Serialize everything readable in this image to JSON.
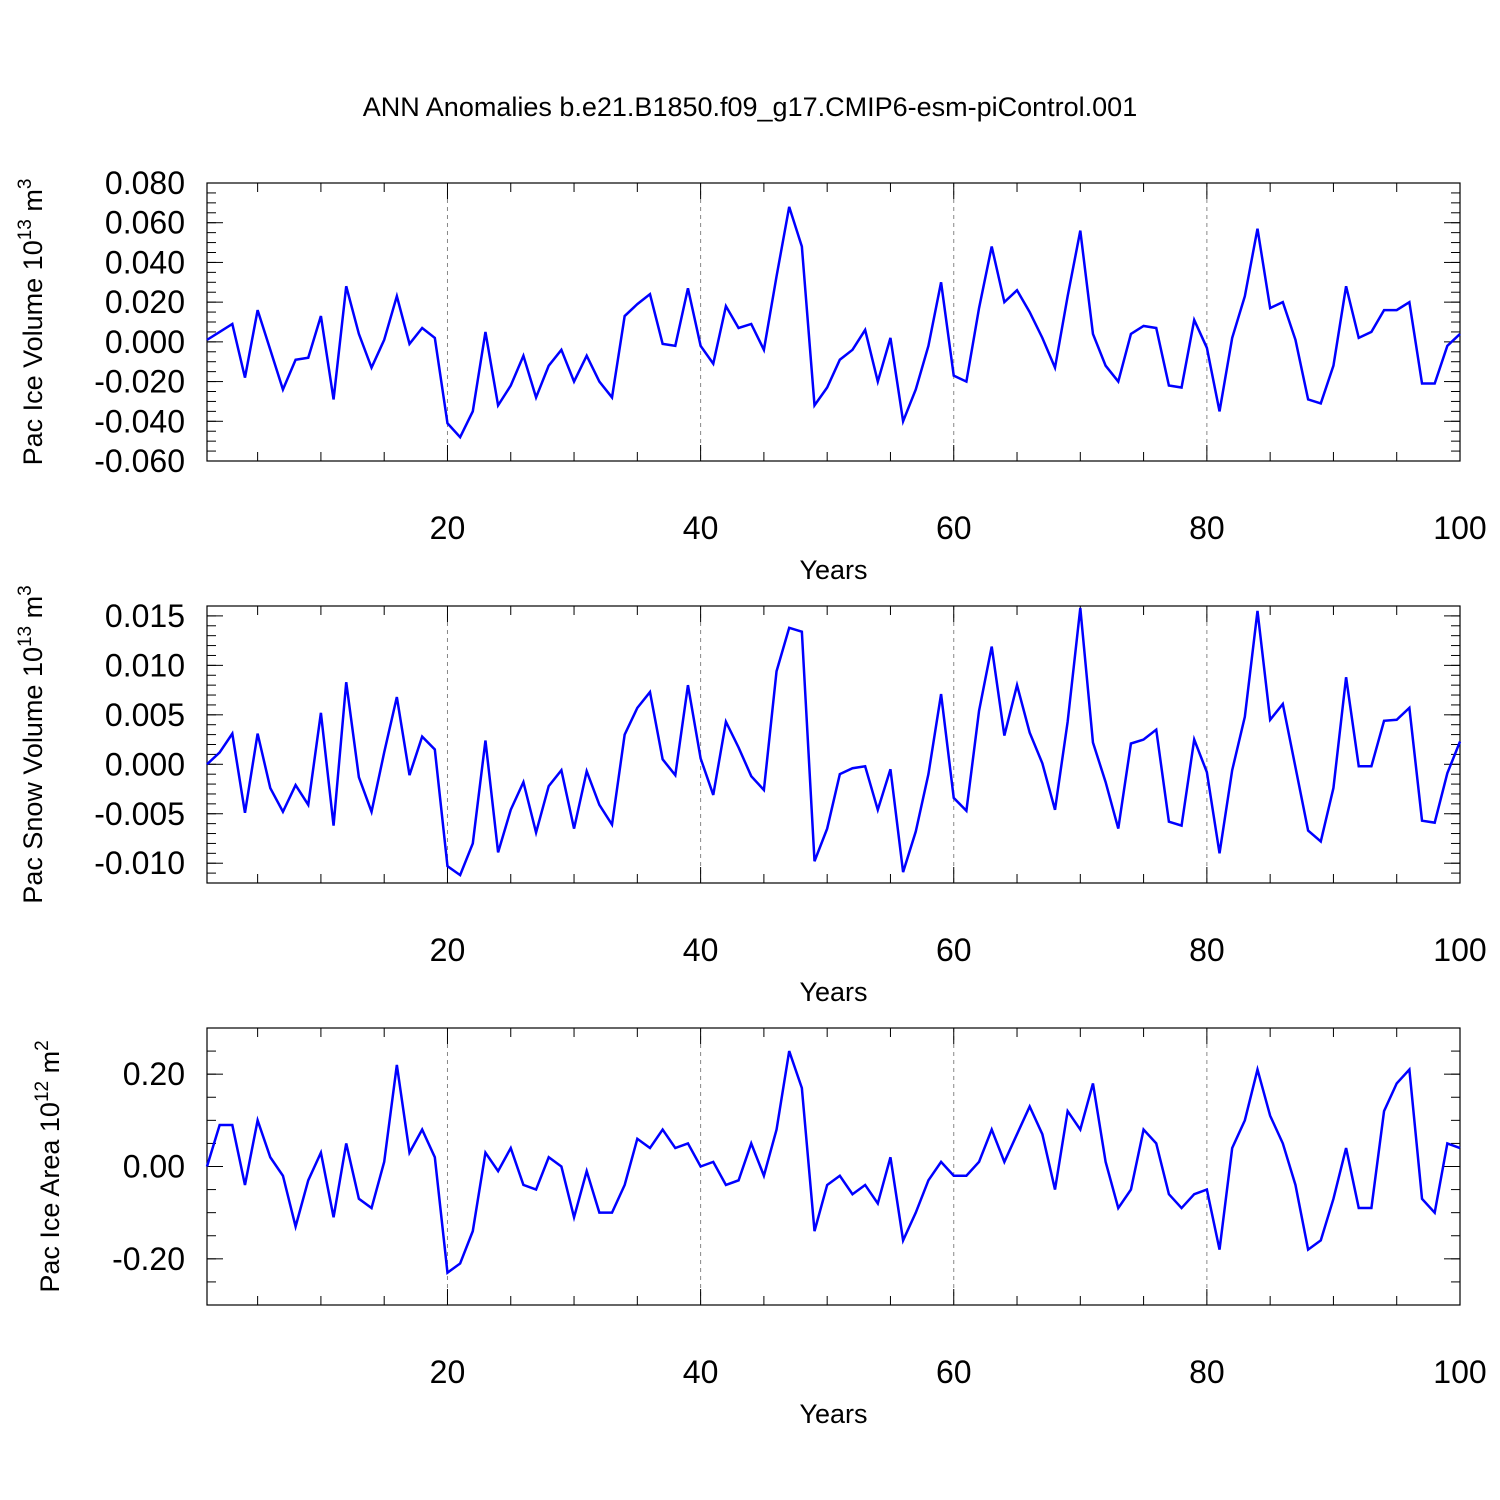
{
  "figure": {
    "title": "ANN Anomalies b.e21.B1850.f09_g17.CMIP6-esm-piControl.001"
  },
  "colors": {
    "series": "#0000ff",
    "axes": "#000000",
    "gridlines": "#888888"
  },
  "chart_data": [
    {
      "type": "line",
      "title": "",
      "xlabel": "Years",
      "ylabel": "Pac Ice Volume 10",
      "ylabel_exponent": "13",
      "ylabel_unit": "m",
      "ylabel_unit_exponent": "3",
      "xlim": [
        1,
        100
      ],
      "ylim": [
        -0.06,
        0.08
      ],
      "x_ticks": [
        20,
        40,
        60,
        80,
        100
      ],
      "y_ticks": [
        -0.06,
        -0.04,
        -0.02,
        0.0,
        0.02,
        0.04,
        0.06,
        0.08
      ],
      "y_tick_labels": [
        "-0.060",
        "-0.040",
        "-0.020",
        "0.000",
        "0.020",
        "0.040",
        "0.060",
        "0.080"
      ],
      "y_minor_step": 0.005,
      "x_minor_step": 5,
      "gridlines_x": [
        20,
        40,
        60,
        80
      ],
      "x": [
        1,
        2,
        3,
        4,
        5,
        6,
        7,
        8,
        9,
        10,
        11,
        12,
        13,
        14,
        15,
        16,
        17,
        18,
        19,
        20,
        21,
        22,
        23,
        24,
        25,
        26,
        27,
        28,
        29,
        30,
        31,
        32,
        33,
        34,
        35,
        36,
        37,
        38,
        39,
        40,
        41,
        42,
        43,
        44,
        45,
        46,
        47,
        48,
        49,
        50,
        51,
        52,
        53,
        54,
        55,
        56,
        57,
        58,
        59,
        60,
        61,
        62,
        63,
        64,
        65,
        66,
        67,
        68,
        69,
        70,
        71,
        72,
        73,
        74,
        75,
        76,
        77,
        78,
        79,
        80,
        81,
        82,
        83,
        84,
        85,
        86,
        87,
        88,
        89,
        90,
        91,
        92,
        93,
        94,
        95,
        96,
        97,
        98,
        99,
        100
      ],
      "series": [
        {
          "name": "Pac Ice Volume",
          "values": [
            0.001,
            0.005,
            0.009,
            -0.018,
            0.016,
            -0.004,
            -0.024,
            -0.009,
            -0.008,
            0.013,
            -0.029,
            0.028,
            0.004,
            -0.013,
            0.001,
            0.023,
            -0.001,
            0.007,
            0.002,
            -0.041,
            -0.048,
            -0.035,
            0.005,
            -0.032,
            -0.022,
            -0.007,
            -0.028,
            -0.012,
            -0.004,
            -0.02,
            -0.007,
            -0.02,
            -0.028,
            0.013,
            0.019,
            0.024,
            -0.001,
            -0.002,
            0.027,
            -0.002,
            -0.011,
            0.018,
            0.007,
            0.009,
            -0.004,
            0.033,
            0.068,
            0.048,
            -0.032,
            -0.023,
            -0.009,
            -0.004,
            0.006,
            -0.02,
            0.002,
            -0.04,
            -0.024,
            -0.002,
            0.03,
            -0.017,
            -0.02,
            0.017,
            0.048,
            0.02,
            0.026,
            0.015,
            0.002,
            -0.013,
            0.023,
            0.056,
            0.004,
            -0.012,
            -0.02,
            0.004,
            0.008,
            0.007,
            -0.022,
            -0.023,
            0.011,
            -0.003,
            -0.035,
            0.002,
            0.023,
            0.057,
            0.017,
            0.02,
            0.001,
            -0.029,
            -0.031,
            -0.012,
            0.028,
            0.002,
            0.005,
            0.016,
            0.016,
            0.02,
            -0.021,
            -0.021,
            -0.002,
            0.004
          ]
        }
      ]
    },
    {
      "type": "line",
      "title": "",
      "xlabel": "Years",
      "ylabel": "Pac Snow Volume 10",
      "ylabel_exponent": "13",
      "ylabel_unit": "m",
      "ylabel_unit_exponent": "3",
      "xlim": [
        1,
        100
      ],
      "ylim": [
        -0.012,
        0.016
      ],
      "x_ticks": [
        20,
        40,
        60,
        80,
        100
      ],
      "y_ticks": [
        -0.01,
        -0.005,
        0.0,
        0.005,
        0.01,
        0.015
      ],
      "y_tick_labels": [
        "-0.010",
        "-0.005",
        "0.000",
        "0.005",
        "0.010",
        "0.015"
      ],
      "y_minor_step": 0.001,
      "x_minor_step": 5,
      "gridlines_x": [
        20,
        40,
        60,
        80
      ],
      "x": [
        1,
        2,
        3,
        4,
        5,
        6,
        7,
        8,
        9,
        10,
        11,
        12,
        13,
        14,
        15,
        16,
        17,
        18,
        19,
        20,
        21,
        22,
        23,
        24,
        25,
        26,
        27,
        28,
        29,
        30,
        31,
        32,
        33,
        34,
        35,
        36,
        37,
        38,
        39,
        40,
        41,
        42,
        43,
        44,
        45,
        46,
        47,
        48,
        49,
        50,
        51,
        52,
        53,
        54,
        55,
        56,
        57,
        58,
        59,
        60,
        61,
        62,
        63,
        64,
        65,
        66,
        67,
        68,
        69,
        70,
        71,
        72,
        73,
        74,
        75,
        76,
        77,
        78,
        79,
        80,
        81,
        82,
        83,
        84,
        85,
        86,
        87,
        88,
        89,
        90,
        91,
        92,
        93,
        94,
        95,
        96,
        97,
        98,
        99,
        100
      ],
      "series": [
        {
          "name": "Pac Snow Volume",
          "values": [
            0.0,
            0.0012,
            0.0031,
            -0.0049,
            0.0031,
            -0.0024,
            -0.0048,
            -0.0021,
            -0.0041,
            0.0052,
            -0.0062,
            0.0083,
            -0.0013,
            -0.0048,
            0.0012,
            0.0068,
            -0.0011,
            0.0028,
            0.0015,
            -0.0103,
            -0.0112,
            -0.008,
            0.0024,
            -0.0089,
            -0.0046,
            -0.0018,
            -0.0069,
            -0.0022,
            -0.0006,
            -0.0065,
            -0.0007,
            -0.0041,
            -0.0061,
            0.003,
            0.0057,
            0.0073,
            0.0005,
            -0.0011,
            0.008,
            0.0006,
            -0.0031,
            0.0043,
            0.0017,
            -0.0012,
            -0.0026,
            0.0094,
            0.0138,
            0.0134,
            -0.0098,
            -0.0065,
            -0.001,
            -0.0004,
            -0.0002,
            -0.0046,
            -0.0005,
            -0.0109,
            -0.0068,
            -0.001,
            0.0071,
            -0.0034,
            -0.0047,
            0.0054,
            0.0119,
            0.0029,
            0.008,
            0.0032,
            0.0001,
            -0.0046,
            0.0043,
            0.0158,
            0.0022,
            -0.0018,
            -0.0065,
            0.0021,
            0.0025,
            0.0035,
            -0.0058,
            -0.0062,
            0.0025,
            -0.0008,
            -0.009,
            -0.0006,
            0.0048,
            0.0155,
            0.0045,
            0.0061,
            -0.0003,
            -0.0067,
            -0.0078,
            -0.0024,
            0.0088,
            -0.0002,
            -0.0002,
            0.0044,
            0.0045,
            0.0057,
            -0.0057,
            -0.0059,
            -0.0009,
            0.0023
          ]
        }
      ]
    },
    {
      "type": "line",
      "title": "",
      "xlabel": "Years",
      "ylabel": "Pac Ice Area 10",
      "ylabel_exponent": "12",
      "ylabel_unit": "m",
      "ylabel_unit_exponent": "2",
      "xlim": [
        1,
        100
      ],
      "ylim": [
        -0.3,
        0.3
      ],
      "x_ticks": [
        20,
        40,
        60,
        80,
        100
      ],
      "y_ticks": [
        -0.2,
        0.0,
        0.2
      ],
      "y_tick_labels": [
        "-0.20",
        "0.00",
        "0.20"
      ],
      "y_minor_step": 0.05,
      "x_minor_step": 5,
      "gridlines_x": [
        20,
        40,
        60,
        80
      ],
      "x": [
        1,
        2,
        3,
        4,
        5,
        6,
        7,
        8,
        9,
        10,
        11,
        12,
        13,
        14,
        15,
        16,
        17,
        18,
        19,
        20,
        21,
        22,
        23,
        24,
        25,
        26,
        27,
        28,
        29,
        30,
        31,
        32,
        33,
        34,
        35,
        36,
        37,
        38,
        39,
        40,
        41,
        42,
        43,
        44,
        45,
        46,
        47,
        48,
        49,
        50,
        51,
        52,
        53,
        54,
        55,
        56,
        57,
        58,
        59,
        60,
        61,
        62,
        63,
        64,
        65,
        66,
        67,
        68,
        69,
        70,
        71,
        72,
        73,
        74,
        75,
        76,
        77,
        78,
        79,
        80,
        81,
        82,
        83,
        84,
        85,
        86,
        87,
        88,
        89,
        90,
        91,
        92,
        93,
        94,
        95,
        96,
        97,
        98,
        99,
        100
      ],
      "series": [
        {
          "name": "Pac Ice Area",
          "values": [
            0.0,
            0.09,
            0.09,
            -0.04,
            0.1,
            0.02,
            -0.02,
            -0.13,
            -0.03,
            0.03,
            -0.11,
            0.05,
            -0.07,
            -0.09,
            0.01,
            0.22,
            0.03,
            0.08,
            0.02,
            -0.23,
            -0.21,
            -0.14,
            0.03,
            -0.01,
            0.04,
            -0.04,
            -0.05,
            0.02,
            0.0,
            -0.11,
            -0.01,
            -0.1,
            -0.1,
            -0.04,
            0.06,
            0.04,
            0.08,
            0.04,
            0.05,
            0.0,
            0.01,
            -0.04,
            -0.03,
            0.05,
            -0.02,
            0.08,
            0.25,
            0.17,
            -0.14,
            -0.04,
            -0.02,
            -0.06,
            -0.04,
            -0.08,
            0.02,
            -0.16,
            -0.1,
            -0.03,
            0.01,
            -0.02,
            -0.02,
            0.01,
            0.08,
            0.01,
            0.07,
            0.13,
            0.07,
            -0.05,
            0.12,
            0.08,
            0.18,
            0.01,
            -0.09,
            -0.05,
            0.08,
            0.05,
            -0.06,
            -0.09,
            -0.06,
            -0.05,
            -0.18,
            0.04,
            0.1,
            0.21,
            0.11,
            0.05,
            -0.04,
            -0.18,
            -0.16,
            -0.07,
            0.04,
            -0.09,
            -0.09,
            0.12,
            0.18,
            0.21,
            -0.07,
            -0.1,
            0.05,
            0.04
          ]
        }
      ]
    }
  ]
}
